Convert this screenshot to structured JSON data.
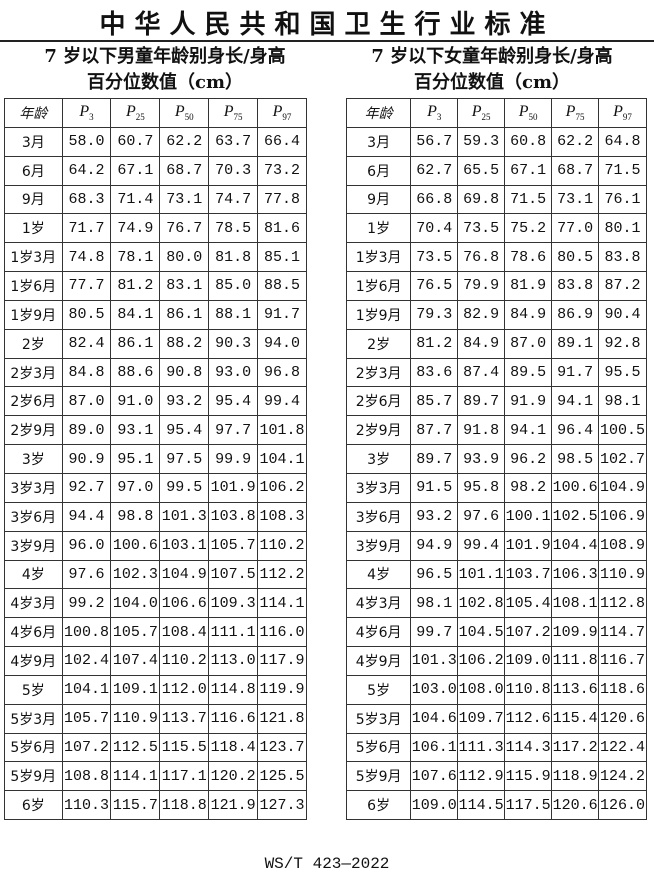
{
  "title": "中华人民共和国卫生行业标准",
  "footer": "WS/T 423—2022",
  "headers": {
    "age": "年龄",
    "percentiles": [
      {
        "p": "P",
        "sub": "3"
      },
      {
        "p": "P",
        "sub": "25"
      },
      {
        "p": "P",
        "sub": "50"
      },
      {
        "p": "P",
        "sub": "75"
      },
      {
        "p": "P",
        "sub": "97"
      }
    ]
  },
  "tables": [
    {
      "title_line1": "7 岁以下男童年龄别身长/身高",
      "title_line2": "百分位数值（cm）",
      "rows": [
        [
          "3月",
          "58.0",
          "60.7",
          "62.2",
          "63.7",
          "66.4"
        ],
        [
          "6月",
          "64.2",
          "67.1",
          "68.7",
          "70.3",
          "73.2"
        ],
        [
          "9月",
          "68.3",
          "71.4",
          "73.1",
          "74.7",
          "77.8"
        ],
        [
          "1岁",
          "71.7",
          "74.9",
          "76.7",
          "78.5",
          "81.6"
        ],
        [
          "1岁3月",
          "74.8",
          "78.1",
          "80.0",
          "81.8",
          "85.1"
        ],
        [
          "1岁6月",
          "77.7",
          "81.2",
          "83.1",
          "85.0",
          "88.5"
        ],
        [
          "1岁9月",
          "80.5",
          "84.1",
          "86.1",
          "88.1",
          "91.7"
        ],
        [
          "2岁",
          "82.4",
          "86.1",
          "88.2",
          "90.3",
          "94.0"
        ],
        [
          "2岁3月",
          "84.8",
          "88.6",
          "90.8",
          "93.0",
          "96.8"
        ],
        [
          "2岁6月",
          "87.0",
          "91.0",
          "93.2",
          "95.4",
          "99.4"
        ],
        [
          "2岁9月",
          "89.0",
          "93.1",
          "95.4",
          "97.7",
          "101.8"
        ],
        [
          "3岁",
          "90.9",
          "95.1",
          "97.5",
          "99.9",
          "104.1"
        ],
        [
          "3岁3月",
          "92.7",
          "97.0",
          "99.5",
          "101.9",
          "106.2"
        ],
        [
          "3岁6月",
          "94.4",
          "98.8",
          "101.3",
          "103.8",
          "108.3"
        ],
        [
          "3岁9月",
          "96.0",
          "100.6",
          "103.1",
          "105.7",
          "110.2"
        ],
        [
          "4岁",
          "97.6",
          "102.3",
          "104.9",
          "107.5",
          "112.2"
        ],
        [
          "4岁3月",
          "99.2",
          "104.0",
          "106.6",
          "109.3",
          "114.1"
        ],
        [
          "4岁6月",
          "100.8",
          "105.7",
          "108.4",
          "111.1",
          "116.0"
        ],
        [
          "4岁9月",
          "102.4",
          "107.4",
          "110.2",
          "113.0",
          "117.9"
        ],
        [
          "5岁",
          "104.1",
          "109.1",
          "112.0",
          "114.8",
          "119.9"
        ],
        [
          "5岁3月",
          "105.7",
          "110.9",
          "113.7",
          "116.6",
          "121.8"
        ],
        [
          "5岁6月",
          "107.2",
          "112.5",
          "115.5",
          "118.4",
          "123.7"
        ],
        [
          "5岁9月",
          "108.8",
          "114.1",
          "117.1",
          "120.2",
          "125.5"
        ],
        [
          "6岁",
          "110.3",
          "115.7",
          "118.8",
          "121.9",
          "127.3"
        ]
      ]
    },
    {
      "title_line1": "7 岁以下女童年龄别身长/身高",
      "title_line2": "百分位数值（cm）",
      "rows": [
        [
          "3月",
          "56.7",
          "59.3",
          "60.8",
          "62.2",
          "64.8"
        ],
        [
          "6月",
          "62.7",
          "65.5",
          "67.1",
          "68.7",
          "71.5"
        ],
        [
          "9月",
          "66.8",
          "69.8",
          "71.5",
          "73.1",
          "76.1"
        ],
        [
          "1岁",
          "70.4",
          "73.5",
          "75.2",
          "77.0",
          "80.1"
        ],
        [
          "1岁3月",
          "73.5",
          "76.8",
          "78.6",
          "80.5",
          "83.8"
        ],
        [
          "1岁6月",
          "76.5",
          "79.9",
          "81.9",
          "83.8",
          "87.2"
        ],
        [
          "1岁9月",
          "79.3",
          "82.9",
          "84.9",
          "86.9",
          "90.4"
        ],
        [
          "2岁",
          "81.2",
          "84.9",
          "87.0",
          "89.1",
          "92.8"
        ],
        [
          "2岁3月",
          "83.6",
          "87.4",
          "89.5",
          "91.7",
          "95.5"
        ],
        [
          "2岁6月",
          "85.7",
          "89.7",
          "91.9",
          "94.1",
          "98.1"
        ],
        [
          "2岁9月",
          "87.7",
          "91.8",
          "94.1",
          "96.4",
          "100.5"
        ],
        [
          "3岁",
          "89.7",
          "93.9",
          "96.2",
          "98.5",
          "102.7"
        ],
        [
          "3岁3月",
          "91.5",
          "95.8",
          "98.2",
          "100.6",
          "104.9"
        ],
        [
          "3岁6月",
          "93.2",
          "97.6",
          "100.1",
          "102.5",
          "106.9"
        ],
        [
          "3岁9月",
          "94.9",
          "99.4",
          "101.9",
          "104.4",
          "108.9"
        ],
        [
          "4岁",
          "96.5",
          "101.1",
          "103.7",
          "106.3",
          "110.9"
        ],
        [
          "4岁3月",
          "98.1",
          "102.8",
          "105.4",
          "108.1",
          "112.8"
        ],
        [
          "4岁6月",
          "99.7",
          "104.5",
          "107.2",
          "109.9",
          "114.7"
        ],
        [
          "4岁9月",
          "101.3",
          "106.2",
          "109.0",
          "111.8",
          "116.7"
        ],
        [
          "5岁",
          "103.0",
          "108.0",
          "110.8",
          "113.6",
          "118.6"
        ],
        [
          "5岁3月",
          "104.6",
          "109.7",
          "112.6",
          "115.4",
          "120.6"
        ],
        [
          "5岁6月",
          "106.1",
          "111.3",
          "114.3",
          "117.2",
          "122.4"
        ],
        [
          "5岁9月",
          "107.6",
          "112.9",
          "115.9",
          "118.9",
          "124.2"
        ],
        [
          "6岁",
          "109.0",
          "114.5",
          "117.5",
          "120.6",
          "126.0"
        ]
      ]
    }
  ]
}
